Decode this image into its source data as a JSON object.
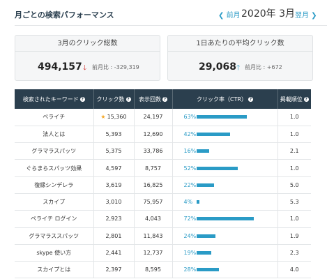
{
  "header": {
    "title": "月ごとの検索パフォーマンス",
    "prev_label": "前月",
    "prev_icon": "chevron-left-icon",
    "current": "2020年 3月",
    "next_label": "翌月",
    "next_icon": "chevron-right-icon"
  },
  "cards": [
    {
      "title": "3月のクリック総数",
      "value": "494,157",
      "trend": "down",
      "arrow": "🡓",
      "arrow_color": "#d0312d",
      "delta": "前月比 : -329,319"
    },
    {
      "title": "1日あたりの平均クリック数",
      "value": "29,068",
      "trend": "up",
      "arrow": "🡑",
      "arrow_color": "#2a9bc6",
      "delta": "前月比 : +672"
    }
  ],
  "table": {
    "columns": [
      "検索されたキーワード",
      "クリック数",
      "表示回数",
      "クリック率（CTR）",
      "掲載順位"
    ],
    "rows": [
      {
        "keyword": "ベライチ",
        "clicks": "15,360",
        "star": true,
        "impressions": "24,197",
        "ctr": "63%",
        "ctr_value": 63,
        "rank": "1.0"
      },
      {
        "keyword": "法人とは",
        "clicks": "5,393",
        "star": false,
        "impressions": "12,690",
        "ctr": "42%",
        "ctr_value": 42,
        "rank": "1.0"
      },
      {
        "keyword": "グラマラスパッツ",
        "clicks": "5,375",
        "star": false,
        "impressions": "33,786",
        "ctr": "16%",
        "ctr_value": 16,
        "rank": "2.1"
      },
      {
        "keyword": "ぐらまらスパッツ効果",
        "clicks": "4,597",
        "star": false,
        "impressions": "8,757",
        "ctr": "52%",
        "ctr_value": 52,
        "rank": "1.0"
      },
      {
        "keyword": "復縁シンデレラ",
        "clicks": "3,619",
        "star": false,
        "impressions": "16,825",
        "ctr": "22%",
        "ctr_value": 22,
        "rank": "5.0"
      },
      {
        "keyword": "スカイプ",
        "clicks": "3,010",
        "star": false,
        "impressions": "75,957",
        "ctr": "4%",
        "ctr_value": 4,
        "rank": "5.3"
      },
      {
        "keyword": "ペライチ ログイン",
        "clicks": "2,923",
        "star": false,
        "impressions": "4,043",
        "ctr": "72%",
        "ctr_value": 72,
        "rank": "1.0"
      },
      {
        "keyword": "グラマラススパッツ",
        "clicks": "2,801",
        "star": false,
        "impressions": "11,843",
        "ctr": "24%",
        "ctr_value": 24,
        "rank": "1.9"
      },
      {
        "keyword": "skype 使い方",
        "clicks": "2,441",
        "star": false,
        "impressions": "12,737",
        "ctr": "19%",
        "ctr_value": 19,
        "rank": "2.3"
      },
      {
        "keyword": "スカイプとは",
        "clicks": "2,397",
        "star": false,
        "impressions": "8,595",
        "ctr": "28%",
        "ctr_value": 28,
        "rank": "4.0"
      }
    ]
  },
  "colors": {
    "accent": "#2a9bc6",
    "header_bg": "#2b3f4e",
    "down": "#d0312d",
    "star": "#f5a623"
  }
}
